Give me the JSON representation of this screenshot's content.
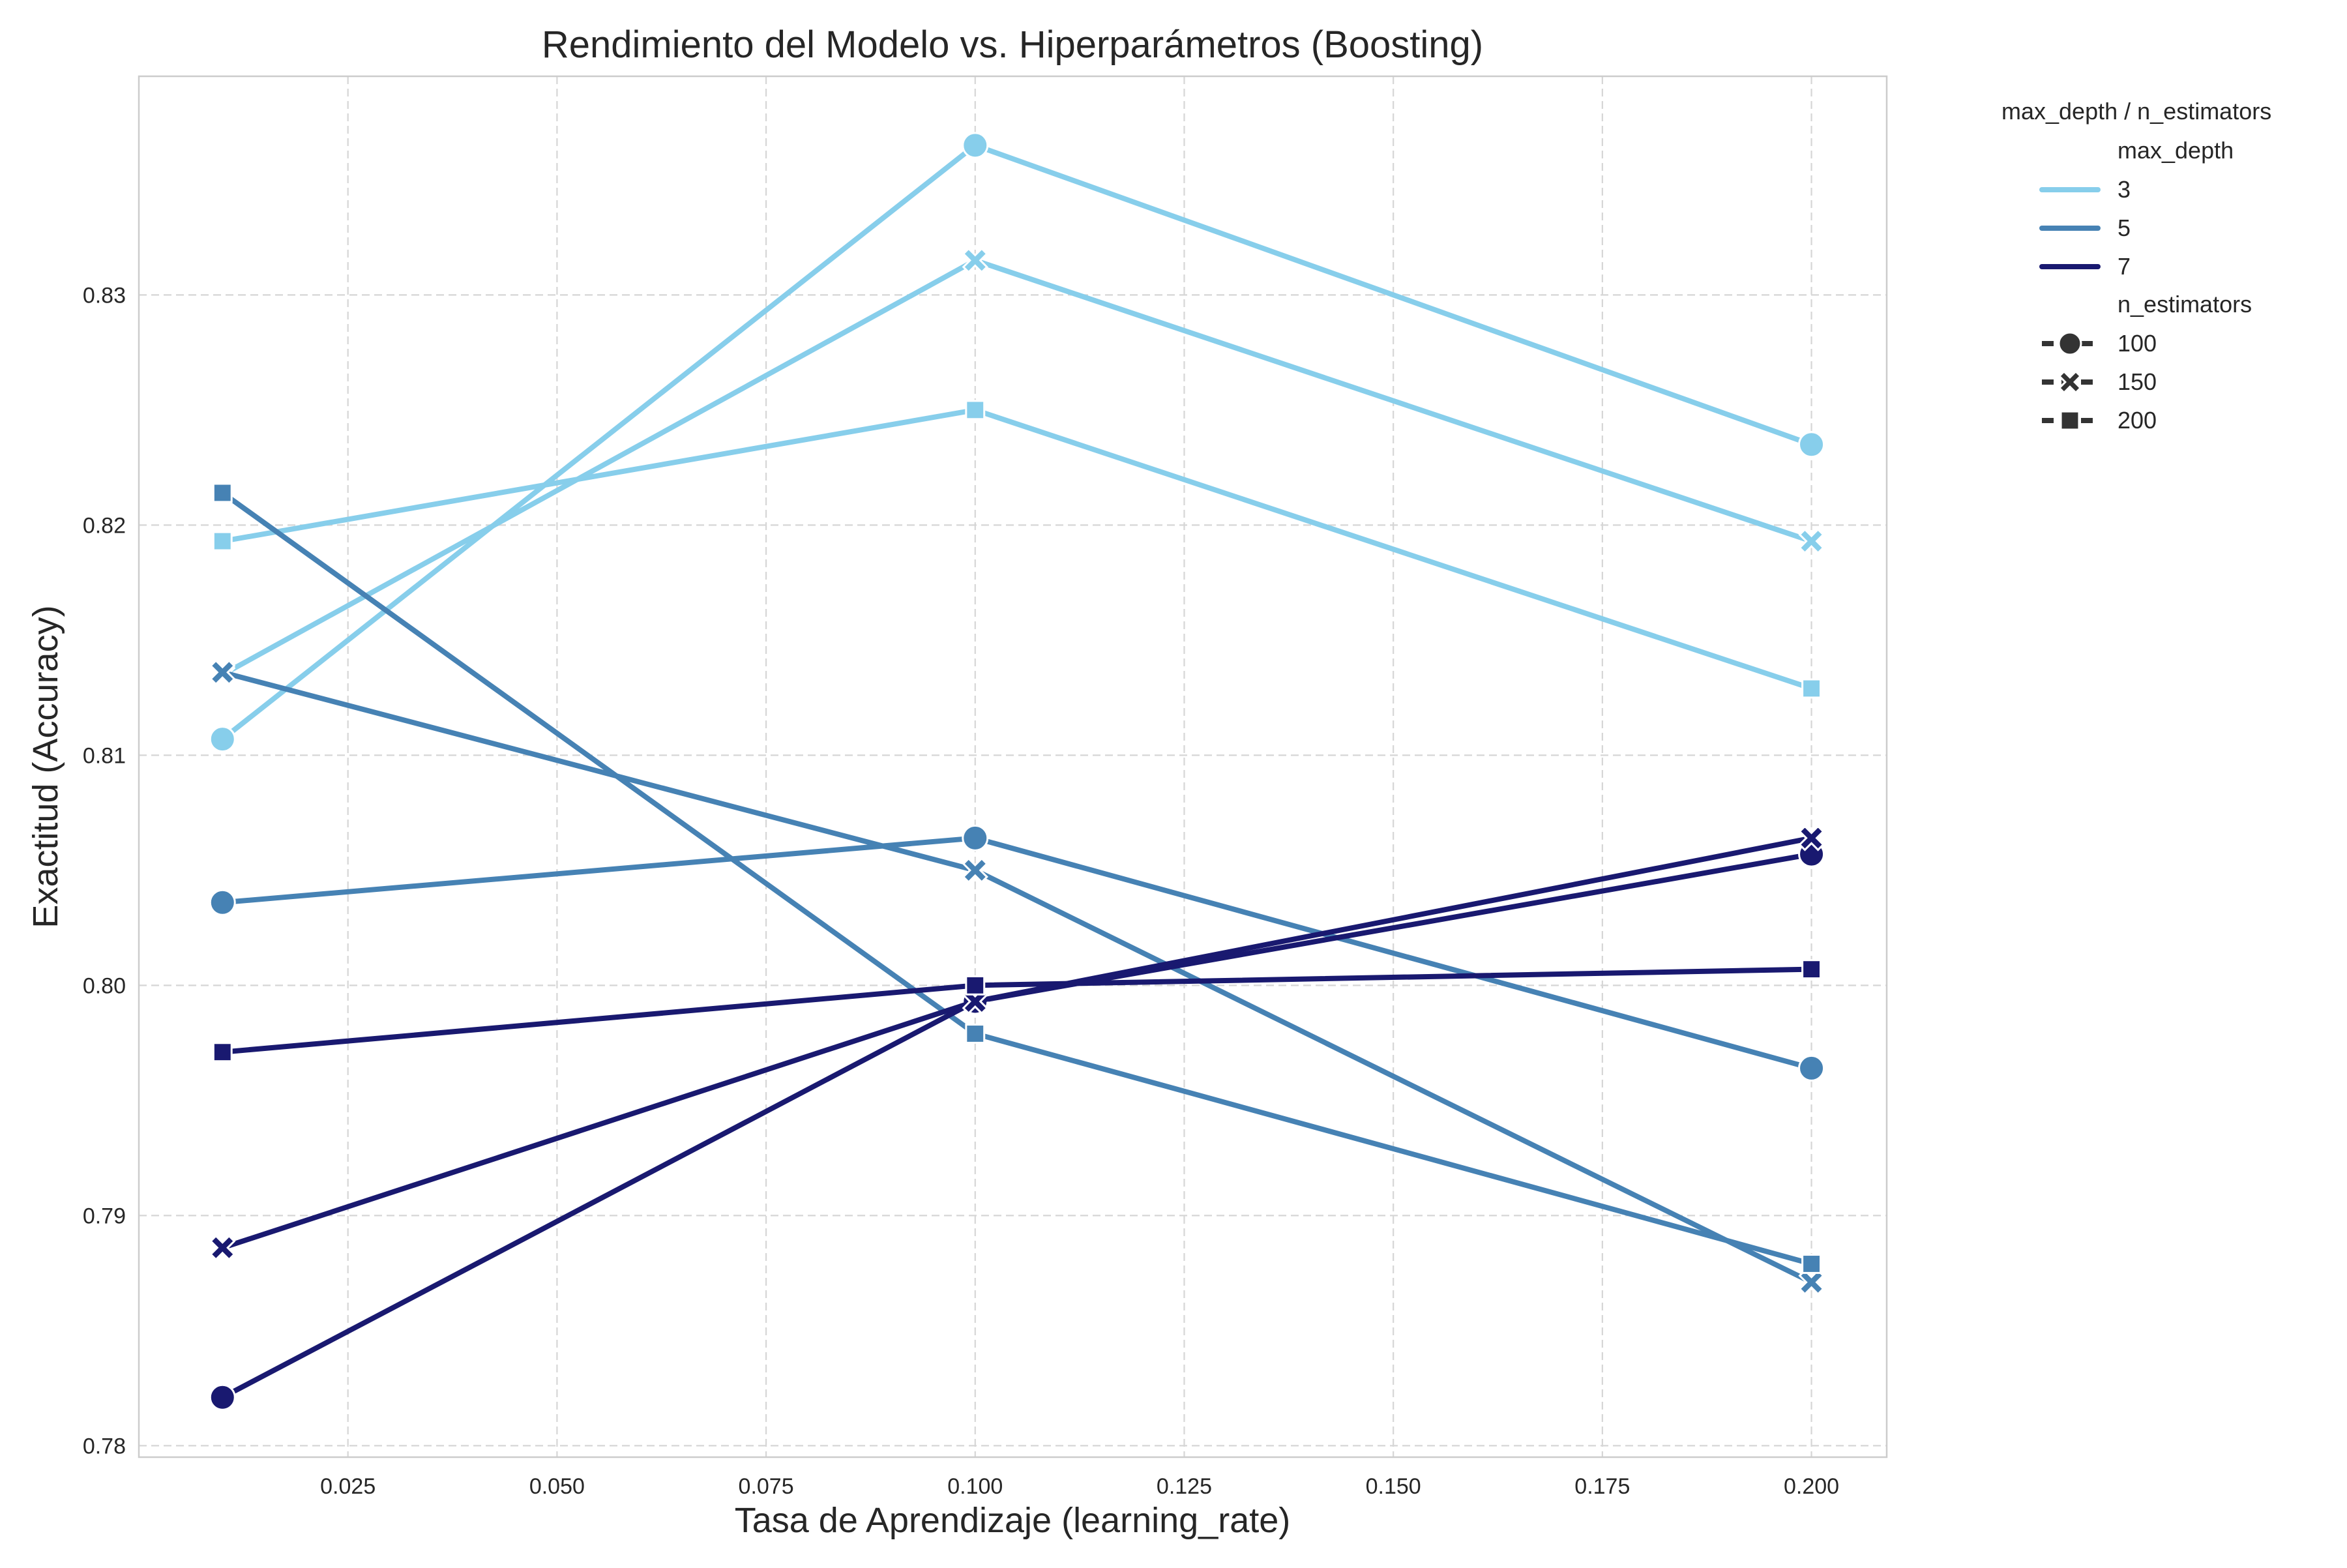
{
  "chart_data": {
    "type": "line",
    "title": "Rendimiento del Modelo vs. Hiperparámetros (Boosting)",
    "xlabel": "Tasa de Aprendizaje (learning_rate)",
    "ylabel": "Exactitud (Accuracy)",
    "xlim": [
      0.0,
      0.209
    ],
    "ylim": [
      0.7795,
      0.8395
    ],
    "xticks": [
      0.025,
      0.05,
      0.075,
      0.1,
      0.125,
      0.15,
      0.175,
      0.2
    ],
    "xtick_labels": [
      "0.025",
      "0.050",
      "0.075",
      "0.100",
      "0.125",
      "0.150",
      "0.175",
      "0.200"
    ],
    "yticks": [
      0.78,
      0.79,
      0.8,
      0.81,
      0.82,
      0.83
    ],
    "ytick_labels": [
      "0.78",
      "0.79",
      "0.80",
      "0.81",
      "0.82",
      "0.83"
    ],
    "grid": true,
    "legend": {
      "placement": "outside-right-top",
      "title": "max_depth / n_estimators",
      "hue_title": "max_depth",
      "hue_items": [
        {
          "label": "3",
          "color": "#87ceeb"
        },
        {
          "label": "5",
          "color": "#4682b4"
        },
        {
          "label": "7",
          "color": "#191970"
        }
      ],
      "style_title": "n_estimators",
      "style_items": [
        {
          "label": "100",
          "marker": "circle"
        },
        {
          "label": "150",
          "marker": "x"
        },
        {
          "label": "200",
          "marker": "square"
        }
      ],
      "style_color": "#333333"
    },
    "x": [
      0.01,
      0.1,
      0.2
    ],
    "series": [
      {
        "max_depth": 3,
        "n_estimators": 100,
        "color": "#87ceeb",
        "marker": "circle",
        "values": [
          0.8107,
          0.8365,
          0.8235
        ]
      },
      {
        "max_depth": 3,
        "n_estimators": 150,
        "color": "#87ceeb",
        "marker": "x",
        "values": [
          0.8135,
          0.8315,
          0.8193
        ]
      },
      {
        "max_depth": 3,
        "n_estimators": 200,
        "color": "#87ceeb",
        "marker": "square",
        "values": [
          0.8193,
          0.825,
          0.8129
        ]
      },
      {
        "max_depth": 5,
        "n_estimators": 100,
        "color": "#4682b4",
        "marker": "circle",
        "values": [
          0.8036,
          0.8064,
          0.7964
        ]
      },
      {
        "max_depth": 5,
        "n_estimators": 150,
        "color": "#4682b4",
        "marker": "x",
        "values": [
          0.8136,
          0.805,
          0.7871
        ]
      },
      {
        "max_depth": 5,
        "n_estimators": 200,
        "color": "#4682b4",
        "marker": "square",
        "values": [
          0.8214,
          0.7979,
          0.7879
        ]
      },
      {
        "max_depth": 7,
        "n_estimators": 100,
        "color": "#191970",
        "marker": "circle",
        "values": [
          0.7821,
          0.7993,
          0.8057
        ]
      },
      {
        "max_depth": 7,
        "n_estimators": 150,
        "color": "#191970",
        "marker": "x",
        "values": [
          0.7886,
          0.7993,
          0.8064
        ]
      },
      {
        "max_depth": 7,
        "n_estimators": 200,
        "color": "#191970",
        "marker": "square",
        "values": [
          0.7971,
          0.8,
          0.8007
        ]
      }
    ]
  }
}
